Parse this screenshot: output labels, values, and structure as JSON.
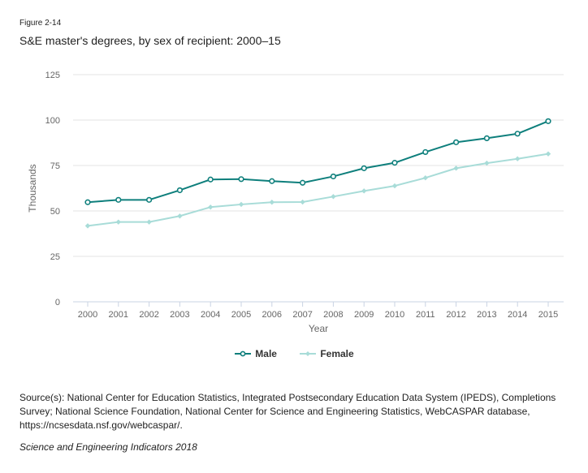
{
  "figure": {
    "label": "Figure 2-14",
    "title": "S&E master's degrees, by sex of recipient: 2000–15"
  },
  "footer": {
    "source": "Source(s): National Center for Education Statistics, Integrated Postsecondary Education Data System (IPEDS), Completions Survey; National Science Foundation, National Center for Science and Engineering Statistics, WebCASPAR database, https://ncsesdata.nsf.gov/webcaspar/.",
    "credit": "Science and Engineering Indicators 2018"
  },
  "chart_data": {
    "type": "line",
    "title": "S&E master's degrees, by sex of recipient: 2000–15",
    "xlabel": "Year",
    "ylabel": "Thousands",
    "ylim": [
      0,
      125
    ],
    "yticks": [
      "0",
      "25",
      "50",
      "75",
      "100",
      "125"
    ],
    "ytick_values": [
      0,
      25,
      50,
      75,
      100,
      125
    ],
    "grid": true,
    "legend_position": "bottom-center",
    "x": [
      "2000",
      "2001",
      "2002",
      "2003",
      "2004",
      "2005",
      "2006",
      "2007",
      "2008",
      "2009",
      "2010",
      "2011",
      "2012",
      "2013",
      "2014",
      "2015"
    ],
    "series": [
      {
        "name": "Male",
        "color": "#0e7f7c",
        "marker": "circle",
        "values": [
          54.8,
          56.1,
          56.1,
          61.4,
          67.3,
          67.5,
          66.4,
          65.5,
          69.0,
          73.5,
          76.5,
          82.4,
          87.8,
          90.0,
          92.5,
          99.4
        ]
      },
      {
        "name": "Female",
        "color": "#a8dcd8",
        "marker": "diamond",
        "values": [
          41.8,
          43.9,
          43.9,
          47.2,
          52.1,
          53.6,
          54.8,
          54.9,
          57.9,
          61.0,
          63.8,
          68.2,
          73.5,
          76.3,
          78.7,
          81.4
        ]
      }
    ]
  }
}
